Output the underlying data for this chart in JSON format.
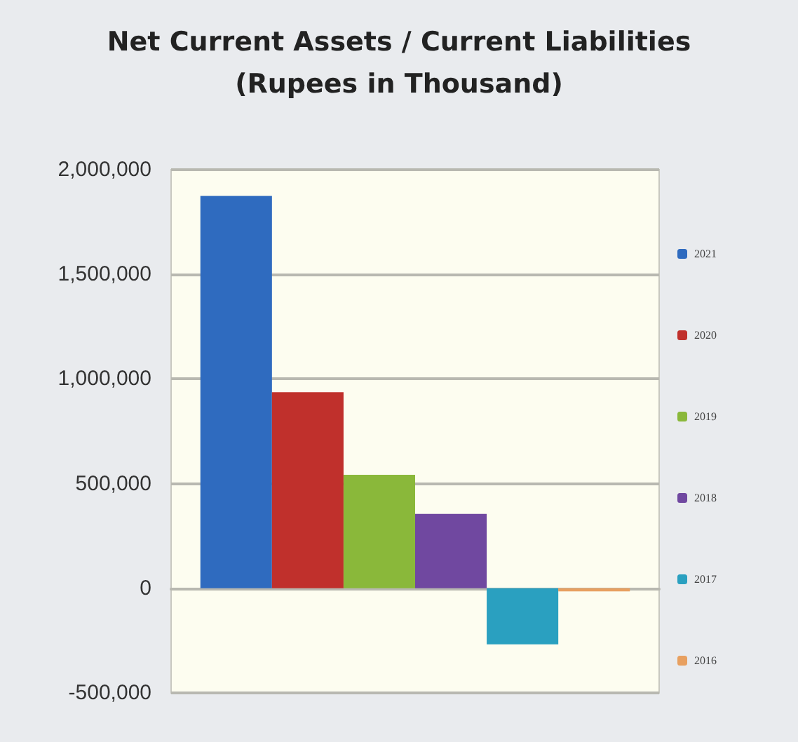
{
  "chart_data": {
    "type": "bar",
    "title": "Net Current Assets / Current Liabilities\n(Rupees in Thousand)",
    "categories": [
      null
    ],
    "series": [
      {
        "name": "2021",
        "color": "#2f6bbf",
        "values": [
          1875000
        ]
      },
      {
        "name": "2020",
        "color": "#c0302c",
        "values": [
          937000
        ]
      },
      {
        "name": "2019",
        "color": "#8ab83a",
        "values": [
          542000
        ]
      },
      {
        "name": "2018",
        "color": "#7048a0",
        "values": [
          355000
        ]
      },
      {
        "name": "2017",
        "color": "#2aa0c0",
        "values": [
          -268000
        ]
      },
      {
        "name": "2016",
        "color": "#e8a060",
        "values": [
          -15000
        ]
      }
    ],
    "ylim": [
      -500000,
      2000000
    ],
    "yticks": [
      {
        "value": -500000,
        "label": "-500,000"
      },
      0,
      {
        "value": 500000,
        "label": "500,000"
      },
      {
        "value": 1000000,
        "label": "1,000,000"
      },
      {
        "value": 1500000,
        "label": "1,500,000"
      },
      {
        "value": 2000000,
        "label": "2,000,000"
      }
    ],
    "grid": "y",
    "legend": "right"
  }
}
